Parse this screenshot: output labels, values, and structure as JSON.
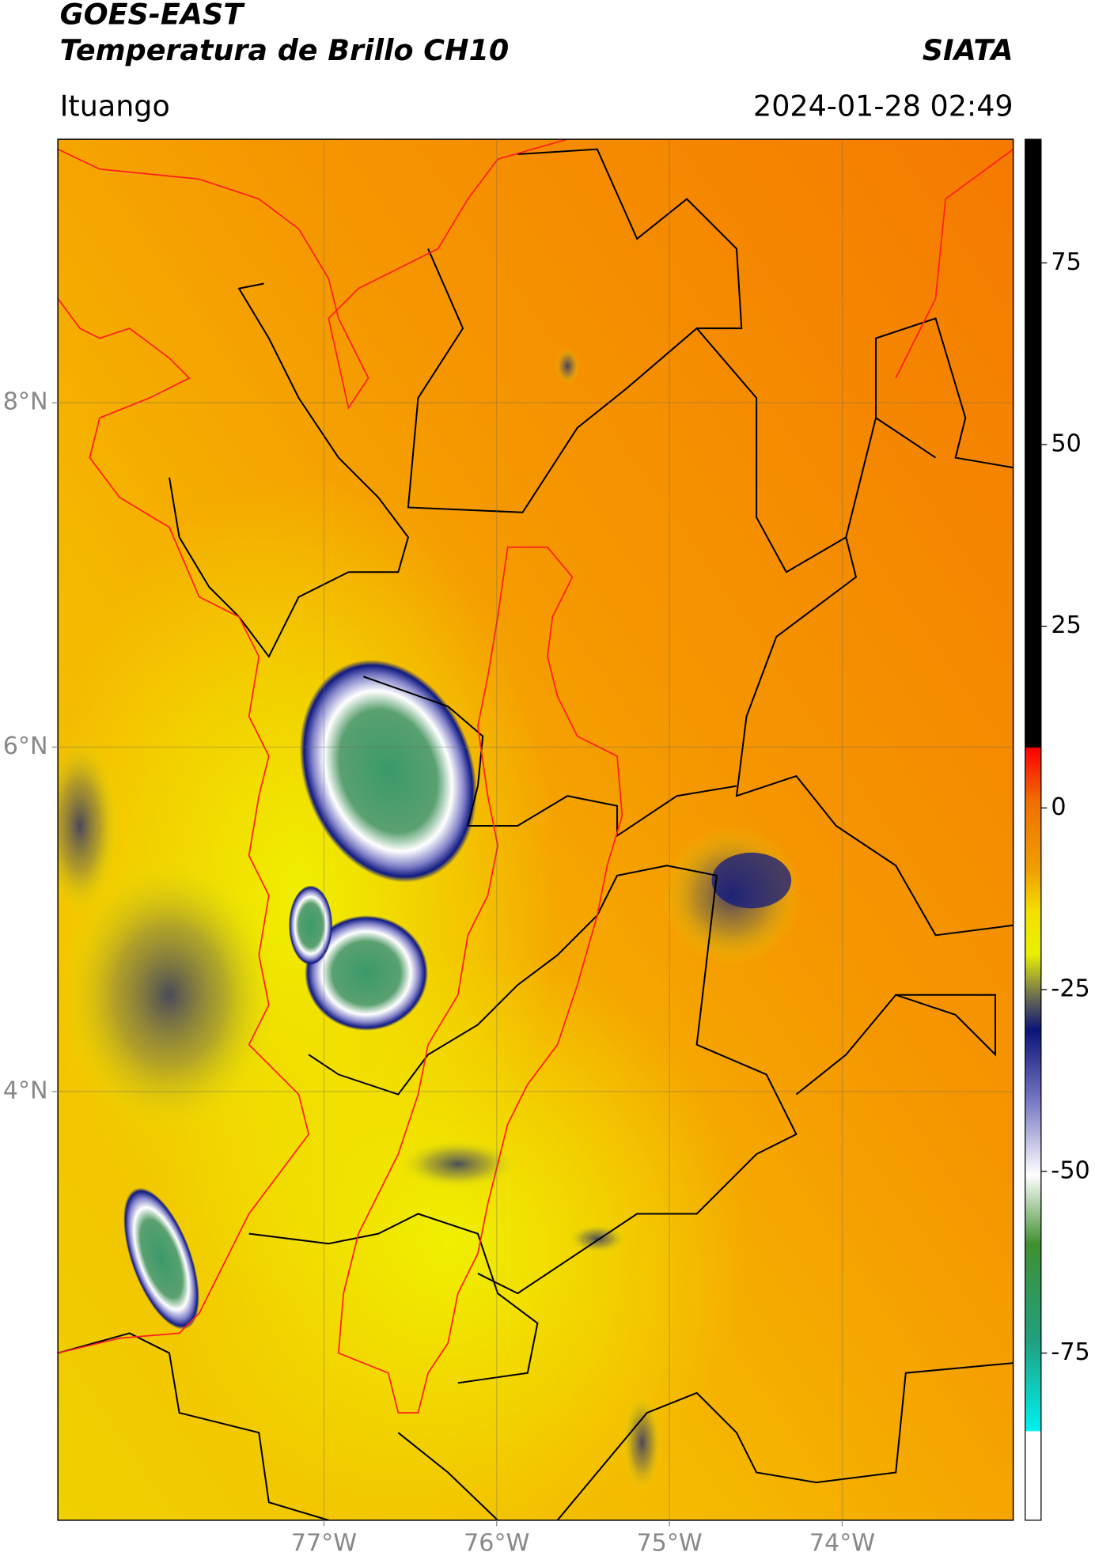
{
  "header": {
    "title": "GOES-EAST",
    "subtitle": "Temperatura de Brillo CH10",
    "brand": "SIATA",
    "location": "Ituango",
    "datetime": "2024-01-28 02:49"
  },
  "map": {
    "lon_range": [
      -78.54,
      -73.01
    ],
    "lat_range": [
      1.51,
      9.53
    ],
    "lon_ticks": [
      {
        "value": -77,
        "label": "77°W"
      },
      {
        "value": -76,
        "label": "76°W"
      },
      {
        "value": -75,
        "label": "75°W"
      },
      {
        "value": -74,
        "label": "74°W"
      }
    ],
    "lat_ticks": [
      {
        "value": 8,
        "label": "8°N"
      },
      {
        "value": 6,
        "label": "6°N"
      },
      {
        "value": 4,
        "label": "4°N"
      }
    ]
  },
  "colorbar": {
    "range": [
      -98,
      92
    ],
    "ticks": [
      75,
      50,
      25,
      0,
      -25,
      -50,
      -75
    ]
  }
}
